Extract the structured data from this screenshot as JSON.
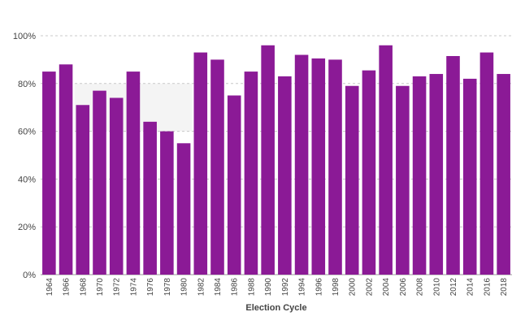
{
  "chart_data": {
    "type": "bar",
    "title": "",
    "xlabel": "Election Cycle",
    "ylabel": "",
    "ylim": [
      0,
      100
    ],
    "y_ticks": [
      "0%",
      "20%",
      "40%",
      "60%",
      "80%",
      "100%"
    ],
    "y_tick_values": [
      0,
      20,
      40,
      60,
      80,
      100
    ],
    "grid": "horizontal-dashed",
    "bar_color": "#8b1a96",
    "band_color": "#f4f4f4",
    "highlight_band": {
      "from": "1968",
      "to": "1980",
      "y_range": [
        60,
        80
      ]
    },
    "categories": [
      "1964",
      "1966",
      "1968",
      "1970",
      "1972",
      "1974",
      "1976",
      "1978",
      "1980",
      "1982",
      "1984",
      "1986",
      "1988",
      "1990",
      "1992",
      "1994",
      "1996",
      "1998",
      "2000",
      "2002",
      "2004",
      "2006",
      "2008",
      "2010",
      "2012",
      "2014",
      "2016",
      "2018"
    ],
    "series": [
      {
        "values": [
          85,
          88,
          71,
          77,
          74,
          85,
          64,
          60,
          55,
          93,
          90,
          75,
          85,
          96,
          83,
          92,
          90.5,
          90,
          79,
          85.5,
          96,
          79,
          83,
          84,
          91.5,
          82,
          93,
          84
        ]
      }
    ]
  }
}
